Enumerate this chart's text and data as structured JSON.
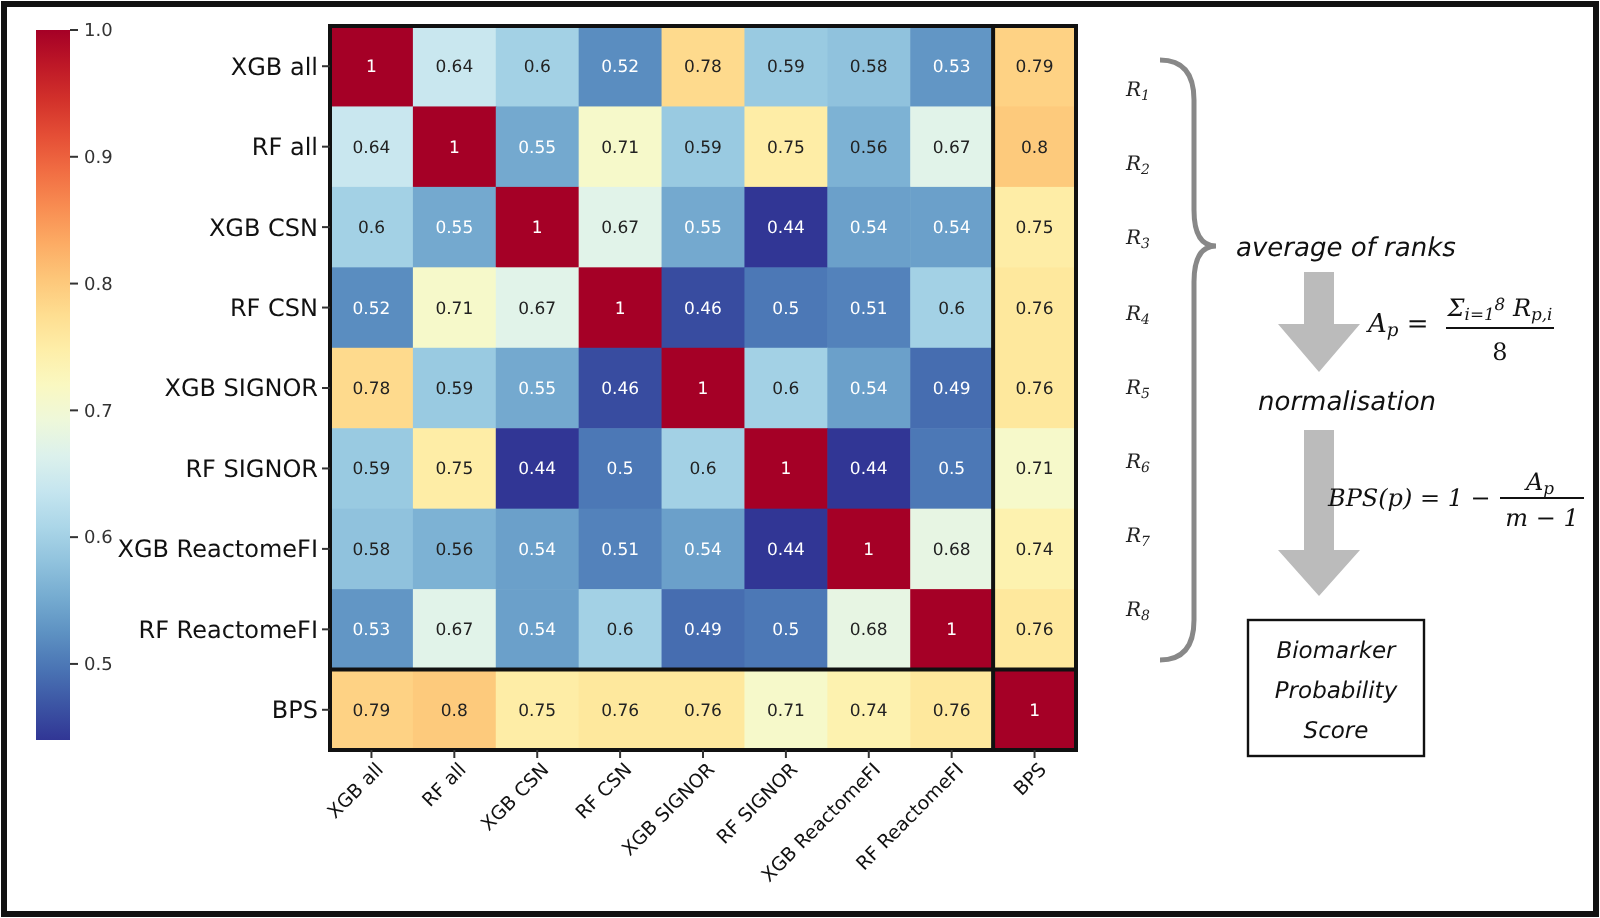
{
  "chart_data": {
    "type": "heatmap",
    "categories": [
      "XGB all",
      "RF all",
      "XGB CSN",
      "RF CSN",
      "XGB SIGNOR",
      "RF SIGNOR",
      "XGB ReactomeFI",
      "RF ReactomeFI",
      "BPS"
    ],
    "y_categories": [
      "XGB all",
      "RF all",
      "XGB CSN",
      "RF CSN",
      "XGB SIGNOR",
      "RF SIGNOR",
      "XGB ReactomeFI",
      "RF ReactomeFI",
      "BPS"
    ],
    "cells": [
      [
        1,
        0.64,
        0.6,
        0.52,
        0.78,
        0.59,
        0.58,
        0.53,
        0.79
      ],
      [
        0.64,
        1,
        0.55,
        0.71,
        0.59,
        0.75,
        0.56,
        0.67,
        0.8
      ],
      [
        0.6,
        0.55,
        1,
        0.67,
        0.55,
        0.44,
        0.54,
        0.54,
        0.75
      ],
      [
        0.52,
        0.71,
        0.67,
        1,
        0.46,
        0.5,
        0.51,
        0.6,
        0.76
      ],
      [
        0.78,
        0.59,
        0.55,
        0.46,
        1,
        0.6,
        0.54,
        0.49,
        0.76
      ],
      [
        0.59,
        0.75,
        0.44,
        0.5,
        0.6,
        1,
        0.44,
        0.5,
        0.71
      ],
      [
        0.58,
        0.56,
        0.54,
        0.51,
        0.54,
        0.44,
        1,
        0.68,
        0.74
      ],
      [
        0.53,
        0.67,
        0.54,
        0.6,
        0.49,
        0.5,
        0.68,
        1,
        0.76
      ],
      [
        0.79,
        0.8,
        0.75,
        0.76,
        0.76,
        0.71,
        0.74,
        0.76,
        1
      ]
    ],
    "data_labels": true,
    "clim": [
      0.44,
      1.0
    ],
    "cticks": [
      {
        "value": 0.5,
        "label": "0.5"
      },
      {
        "value": 0.6,
        "label": "0.6"
      },
      {
        "value": 0.7,
        "label": "0.7"
      },
      {
        "value": 0.8,
        "label": "0.8"
      },
      {
        "value": 0.9,
        "label": "0.9"
      },
      {
        "value": 1.0,
        "label": "1.0"
      }
    ],
    "annotations": [
      "R$_{1}$",
      "R$_{2}$",
      "R$_{3}$",
      "R$_{4}$",
      "R$_{5}$",
      "R$_{6}$",
      "R$_{7}$",
      "R$_{8}$",
      "average of ranks",
      "A$_{p}$ =",
      "Σ$_{i=1}$$^{8}$ R$_{p,i}$",
      "8",
      "normalisation",
      "BPS(p) = 1 −",
      "A$_{p}$",
      "m − 1",
      "Biomarker Probability Score"
    ]
  }
}
